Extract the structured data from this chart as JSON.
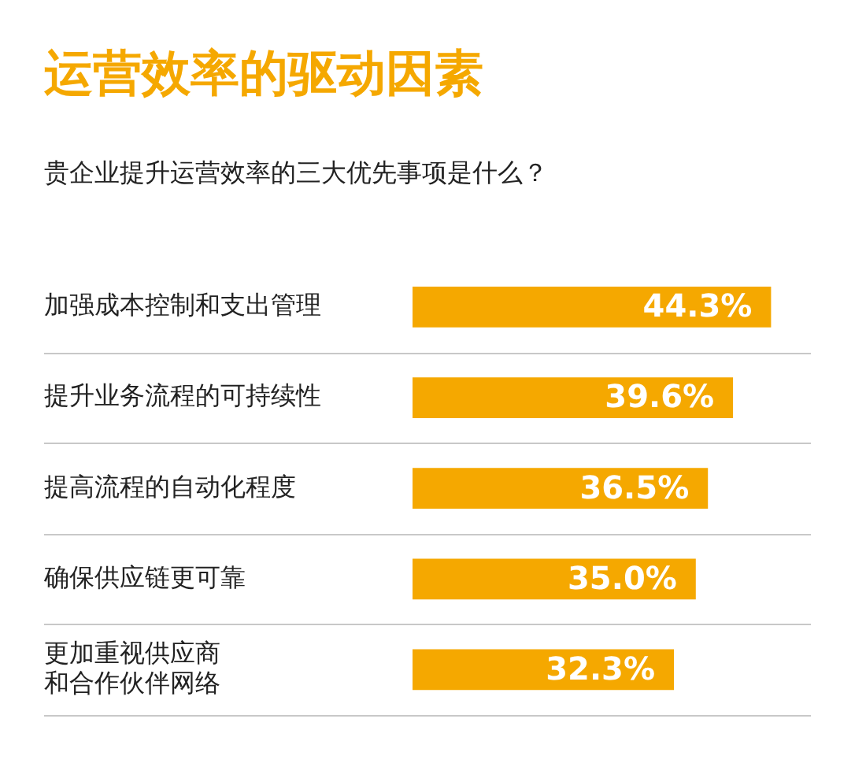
{
  "chart_data": {
    "type": "bar",
    "orientation": "horizontal",
    "title": "运营效率的驱动因素",
    "subtitle": "贵企业提升运营效率的三大优先事项是什么？",
    "categories": [
      "加强成本控制和支出管理",
      "提升业务流程的可持续性",
      "提高流程的自动化程度",
      "确保供应链更可靠",
      "更加重视供应商和合作伙伴网络"
    ],
    "values": [
      44.3,
      39.6,
      36.5,
      35.0,
      32.3
    ],
    "value_labels": [
      "44.3%",
      "39.6%",
      "36.5%",
      "35.0%",
      "32.3%"
    ],
    "color": "#f5a800",
    "grid": "y",
    "legend": false
  }
}
